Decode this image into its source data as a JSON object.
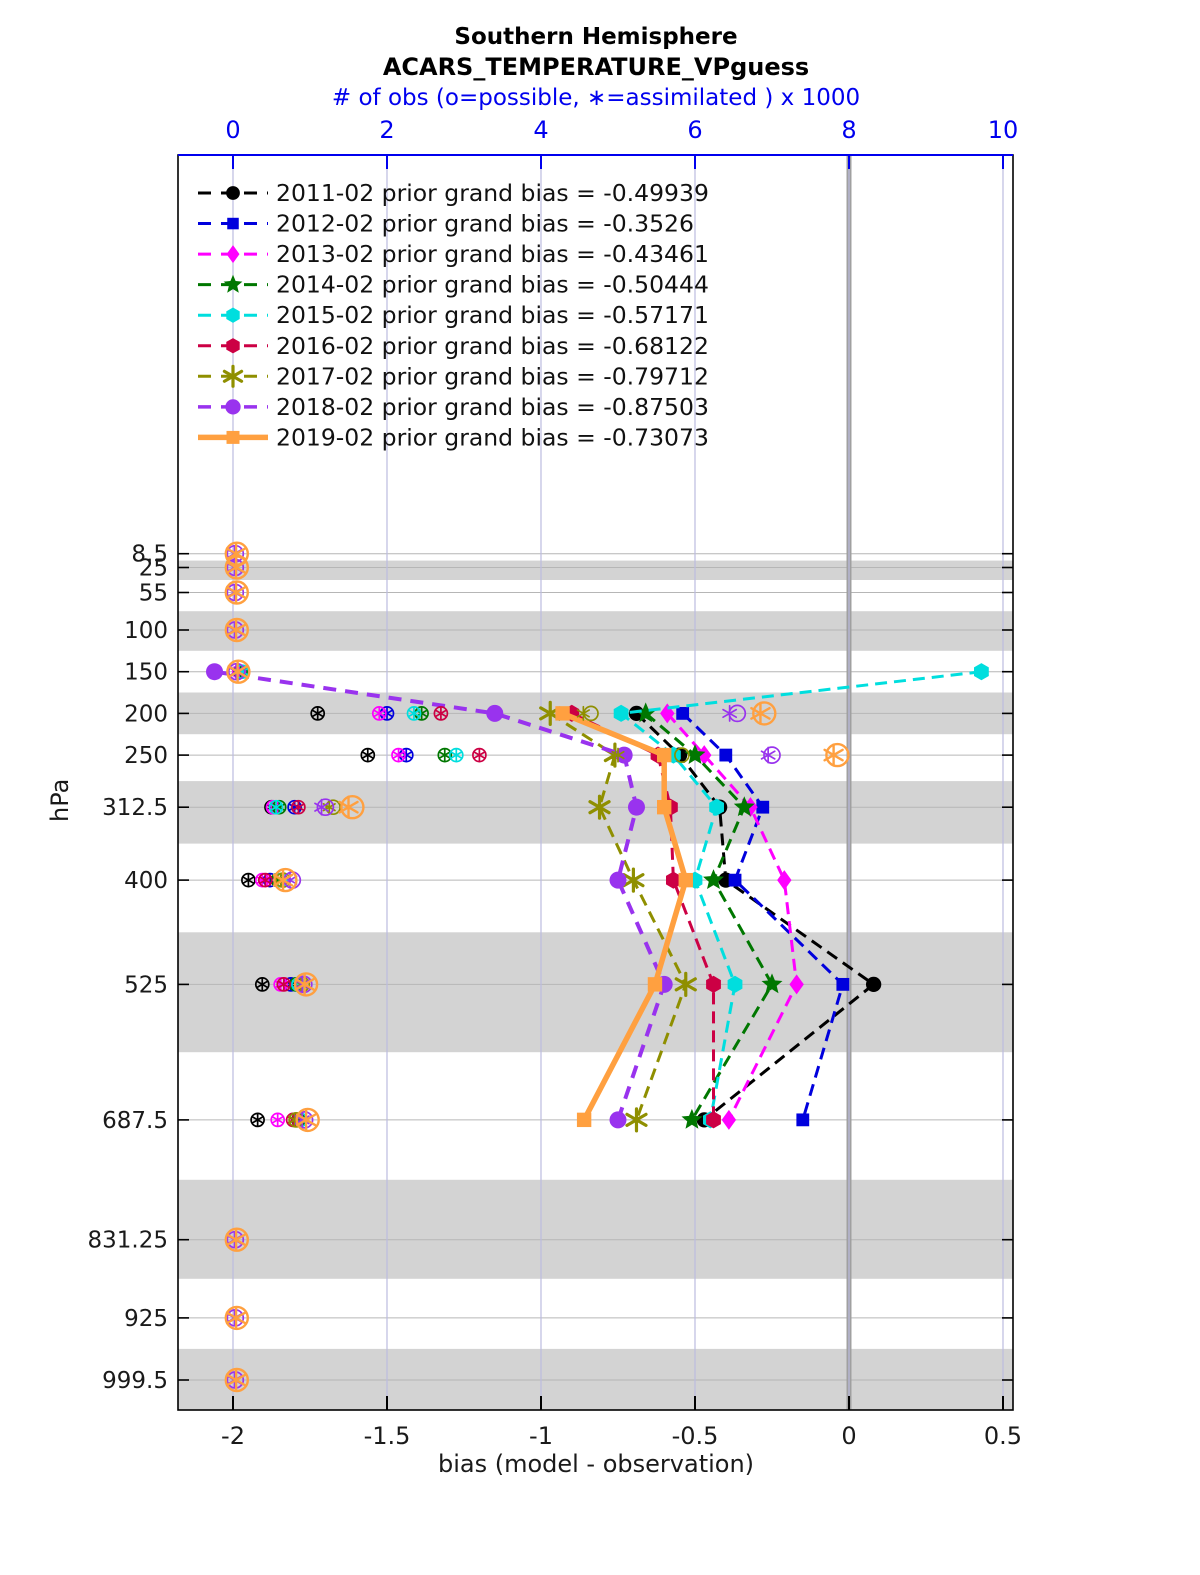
{
  "chart_data": {
    "type": "line",
    "title": "Southern Hemisphere",
    "subtitle": "ACARS_TEMPERATURE_VPguess",
    "top_axis": {
      "label": "# of obs (o=possible, ∗=assimilated ) x 1000",
      "ticks": [
        0,
        2,
        4,
        6,
        8,
        10
      ],
      "color": "#0000ee",
      "range": [
        -0.71,
        10.13
      ]
    },
    "x_axis": {
      "label": "bias (model - observation)",
      "ticks": [
        -2,
        -1.5,
        -1,
        -0.5,
        0,
        0.5
      ],
      "tick_labels": [
        "-2",
        "-1.5",
        "-1",
        "-0.5",
        "0",
        "0.5"
      ],
      "range": [
        -2.18,
        0.53
      ]
    },
    "y_axis": {
      "label": "hPa",
      "levels": [
        8.5,
        25,
        55,
        100,
        150,
        200,
        250,
        312.5,
        400,
        525,
        687.5,
        831.25,
        925,
        999.5
      ],
      "level_labels": [
        "8.5",
        "25",
        "55",
        "100",
        "150",
        "200",
        "250",
        "312.5",
        "400",
        "525",
        "687.5",
        "831.25",
        "925",
        "999.5"
      ],
      "range": [
        -470,
        1035
      ]
    },
    "shaded_levels": [
      25,
      100,
      200,
      312.5,
      525,
      831.25,
      999.5
    ],
    "shading_color": "#d3d3d3",
    "level_line_color": "#b6b6b6",
    "gridline_color": "#bcbcdf",
    "zero_bias_line": {
      "bias": 0,
      "color": "#a0a0a0"
    },
    "legend_position": "top-left",
    "series": [
      {
        "year": "2011-02",
        "label": "2011-02 prior grand bias = -0.49939",
        "grand_bias": -0.49939,
        "color": "#000000",
        "marker": "circle",
        "line_style": "dashed",
        "bias": [
          null,
          null,
          null,
          null,
          null,
          -0.69,
          -0.55,
          -0.42,
          -0.4,
          0.08,
          -0.47,
          null,
          null,
          null
        ],
        "obs_possible": [
          null,
          null,
          null,
          null,
          null,
          1.1,
          1.75,
          0.5,
          0.2,
          0.38,
          0.32,
          null,
          null,
          null
        ],
        "obs_assimilated": [
          null,
          null,
          null,
          null,
          null,
          1.1,
          1.75,
          0.5,
          0.2,
          0.38,
          0.32,
          null,
          null,
          null
        ]
      },
      {
        "year": "2012-02",
        "label": "2012-02 prior grand bias = -0.3526",
        "grand_bias": -0.3526,
        "color": "#0000dd",
        "marker": "square",
        "line_style": "dashed",
        "bias": [
          null,
          null,
          null,
          null,
          null,
          -0.54,
          -0.4,
          -0.28,
          -0.37,
          -0.02,
          -0.15,
          null,
          null,
          null
        ],
        "obs_possible": [
          null,
          null,
          null,
          null,
          null,
          2.0,
          2.25,
          0.8,
          0.48,
          0.75,
          0.85,
          null,
          null,
          null
        ],
        "obs_assimilated": [
          null,
          null,
          null,
          null,
          null,
          2.0,
          2.25,
          0.8,
          0.48,
          0.75,
          0.85,
          null,
          null,
          null
        ]
      },
      {
        "year": "2013-02",
        "label": "2013-02 prior grand bias = -0.43461",
        "grand_bias": -0.43461,
        "color": "#ff00ff",
        "marker": "diamond",
        "line_style": "dashed",
        "bias": [
          null,
          null,
          null,
          null,
          null,
          -0.59,
          -0.47,
          -0.32,
          -0.21,
          -0.17,
          -0.39,
          null,
          null,
          null
        ],
        "obs_possible": [
          null,
          null,
          null,
          null,
          0.08,
          1.9,
          2.15,
          0.52,
          0.38,
          0.62,
          0.58,
          null,
          null,
          null
        ],
        "obs_assimilated": [
          null,
          null,
          null,
          null,
          0.08,
          1.9,
          2.15,
          0.52,
          0.38,
          0.62,
          0.58,
          null,
          null,
          null
        ]
      },
      {
        "year": "2014-02",
        "label": "2014-02 prior grand bias = -0.50444",
        "grand_bias": -0.50444,
        "color": "#007700",
        "marker": "star",
        "line_style": "dashed",
        "bias": [
          null,
          null,
          null,
          null,
          null,
          -0.66,
          -0.5,
          -0.34,
          -0.44,
          -0.25,
          -0.51,
          null,
          null,
          null
        ],
        "obs_possible": [
          null,
          null,
          null,
          null,
          0.1,
          2.45,
          2.75,
          0.6,
          0.58,
          0.82,
          0.85,
          null,
          null,
          null
        ],
        "obs_assimilated": [
          null,
          null,
          null,
          null,
          0.1,
          2.45,
          2.75,
          0.6,
          0.58,
          0.82,
          0.85,
          null,
          null,
          null
        ]
      },
      {
        "year": "2015-02",
        "label": "2015-02 prior grand bias = -0.57171",
        "grand_bias": -0.57171,
        "color": "#00dede",
        "marker": "hexagon",
        "line_style": "dashed",
        "bias": [
          null,
          null,
          null,
          null,
          0.43,
          -0.74,
          -0.57,
          -0.43,
          -0.5,
          -0.37,
          -0.45,
          null,
          null,
          null
        ],
        "obs_possible": [
          null,
          null,
          null,
          null,
          0.12,
          2.35,
          2.9,
          0.56,
          0.62,
          0.85,
          0.88,
          null,
          null,
          null
        ],
        "obs_assimilated": [
          null,
          null,
          null,
          null,
          0.12,
          2.35,
          2.9,
          0.56,
          0.62,
          0.85,
          0.88,
          null,
          null,
          null
        ]
      },
      {
        "year": "2016-02",
        "label": "2016-02 prior grand bias = -0.68122",
        "grand_bias": -0.68122,
        "color": "#cc0044",
        "marker": "hexagon",
        "line_style": "dashed",
        "bias": [
          null,
          null,
          null,
          null,
          null,
          -0.9,
          -0.62,
          -0.58,
          -0.57,
          -0.44,
          -0.44,
          null,
          null,
          null
        ],
        "obs_possible": [
          null,
          null,
          null,
          null,
          null,
          2.7,
          3.2,
          0.85,
          0.42,
          0.66,
          0.78,
          null,
          null,
          null
        ],
        "obs_assimilated": [
          null,
          null,
          null,
          null,
          null,
          2.7,
          3.2,
          0.85,
          0.42,
          0.66,
          0.78,
          null,
          null,
          null
        ]
      },
      {
        "year": "2017-02",
        "label": "2017-02 prior grand bias = -0.79712",
        "grand_bias": -0.79712,
        "color": "#8f8f00",
        "marker": "asterisk",
        "line_style": "dashed",
        "bias": [
          null,
          null,
          null,
          null,
          null,
          -0.97,
          -0.76,
          -0.81,
          -0.7,
          -0.53,
          -0.69,
          null,
          null,
          null
        ],
        "obs_possible": [
          null,
          null,
          null,
          null,
          null,
          4.65,
          5.83,
          1.3,
          0.65,
          0.9,
          0.82,
          null,
          null,
          null
        ],
        "obs_assimilated": [
          null,
          null,
          null,
          null,
          null,
          4.55,
          5.0,
          1.25,
          0.62,
          0.88,
          0.8,
          null,
          null,
          null
        ]
      },
      {
        "year": "2018-02",
        "label": "2018-02 prior grand bias = -0.87503",
        "grand_bias": -0.87503,
        "color": "#9933ee",
        "marker": "circle",
        "line_style": "dashed",
        "bias": [
          null,
          null,
          null,
          null,
          -2.06,
          -1.15,
          -0.73,
          -0.69,
          -0.75,
          -0.6,
          -0.75,
          null,
          null,
          null
        ],
        "obs_possible": [
          0.03,
          0.03,
          0.03,
          0.03,
          0.05,
          6.55,
          7.0,
          1.2,
          0.77,
          0.92,
          0.93,
          0.03,
          0.03,
          0.03
        ],
        "obs_assimilated": [
          0.02,
          0.02,
          0.02,
          0.02,
          0.04,
          6.45,
          6.95,
          1.15,
          0.74,
          0.9,
          0.9,
          0.02,
          0.02,
          0.02
        ]
      },
      {
        "year": "2019-02",
        "label": "2019-02 prior grand bias = -0.73073",
        "grand_bias": -0.73073,
        "color": "#ffa040",
        "marker": "square",
        "line_style": "solid",
        "bias": [
          null,
          null,
          null,
          null,
          null,
          -0.93,
          -0.6,
          -0.6,
          -0.53,
          -0.63,
          -0.86,
          null,
          null,
          null
        ],
        "obs_possible": [
          0.05,
          0.05,
          0.05,
          0.05,
          0.07,
          6.9,
          7.85,
          1.55,
          0.68,
          0.95,
          0.97,
          0.05,
          0.05,
          0.05
        ],
        "obs_assimilated": [
          0.04,
          0.04,
          0.04,
          0.04,
          0.06,
          6.85,
          7.8,
          1.5,
          0.65,
          0.93,
          0.95,
          0.04,
          0.04,
          0.04
        ]
      }
    ]
  }
}
